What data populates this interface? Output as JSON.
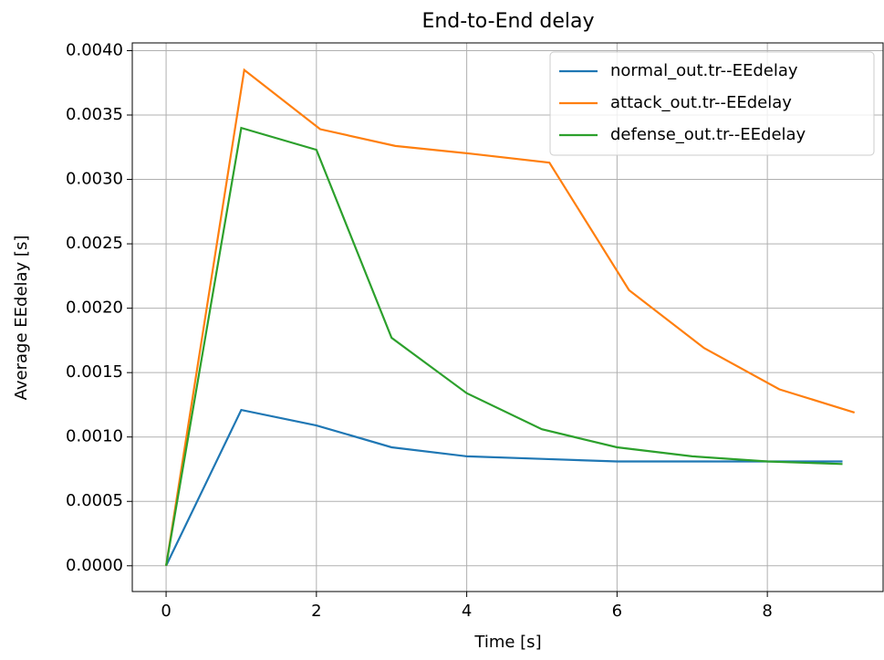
{
  "chart_data": {
    "type": "line",
    "title": "End-to-End delay",
    "x_label": "Time [s]",
    "y_label": "Average EEdelay [s]",
    "xlim": [
      -0.45,
      9.54
    ],
    "xticks": [
      0,
      2,
      4,
      6,
      8
    ],
    "ylim": [
      -0.0002,
      0.00406
    ],
    "yticks": [
      {
        "value": 0,
        "label": "0.0000"
      },
      {
        "value": 0.0005,
        "label": "0.0005"
      },
      {
        "value": 0.001,
        "label": "0.0010"
      },
      {
        "value": 0.0015,
        "label": "0.0015"
      },
      {
        "value": 0.002,
        "label": "0.0020"
      },
      {
        "value": 0.0025,
        "label": "0.0025"
      },
      {
        "value": 0.003,
        "label": "0.0030"
      },
      {
        "value": 0.0035,
        "label": "0.0035"
      },
      {
        "value": 0.004,
        "label": "0.0040"
      }
    ],
    "grid": true,
    "legend": "upper right",
    "series": [
      {
        "name": "normal_out.tr--EEdelay",
        "color": "#1f77b4",
        "x": [
          0,
          1,
          2,
          3,
          4,
          5,
          6,
          7,
          8,
          9
        ],
        "values": [
          0,
          0.00121,
          0.00109,
          0.00092,
          0.00085,
          0.00083,
          0.00081,
          0.00081,
          0.00081,
          0.00081
        ]
      },
      {
        "name": "attack_out.tr--EEdelay",
        "color": "#ff7f0e",
        "x": [
          0,
          1.04,
          2.05,
          3.05,
          4.05,
          5.1,
          6.16,
          7.16,
          8.16,
          9.16
        ],
        "values": [
          0,
          0.00385,
          0.00339,
          0.00326,
          0.0032,
          0.00313,
          0.00214,
          0.00169,
          0.00137,
          0.00119
        ]
      },
      {
        "name": "defense_out.tr--EEdelay",
        "color": "#2ca02c",
        "x": [
          0,
          1,
          2,
          3,
          4,
          5,
          6,
          7,
          8,
          9
        ],
        "values": [
          0,
          0.0034,
          0.00323,
          0.00177,
          0.00134,
          0.00106,
          0.00092,
          0.00085,
          0.00081,
          0.00079
        ]
      }
    ]
  }
}
